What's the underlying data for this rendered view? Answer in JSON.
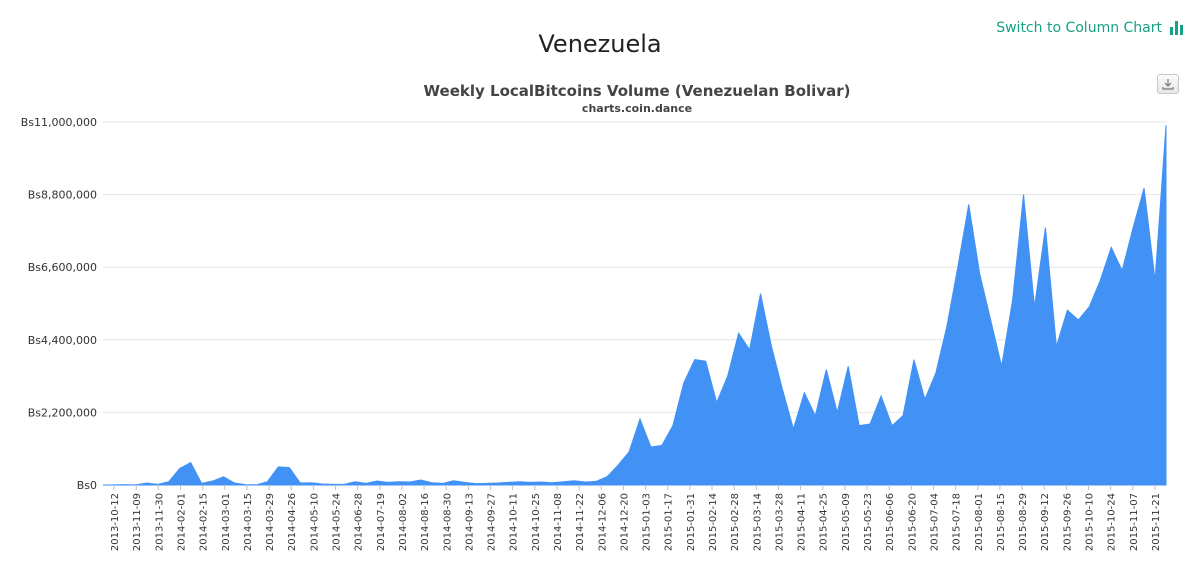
{
  "page": {
    "title": "Venezuela",
    "switch_label": "Switch to Column Chart",
    "switch_icon": "bar-chart-icon",
    "export_icon": "download-icon",
    "accent_color": "#16a085"
  },
  "chart_data": {
    "type": "area",
    "title": "Weekly LocalBitcoins Volume (Venezuelan Bolivar)",
    "subtitle": "charts.coin.dance",
    "xlabel": "",
    "ylabel": "",
    "currency_prefix": "Bs",
    "color": "#4292f5",
    "grid": true,
    "legend": "none",
    "ylim": [
      0,
      11000000
    ],
    "yticks": [
      0,
      2200000,
      4400000,
      6600000,
      8800000,
      11000000
    ],
    "ytick_labels": [
      "Bs0",
      "Bs2,200,000",
      "Bs4,400,000",
      "Bs6,600,000",
      "Bs8,800,000",
      "Bs11,000,000"
    ],
    "xtick_labels": [
      "2013-10-12",
      "2013-11-09",
      "2013-11-30",
      "2014-02-01",
      "2014-02-15",
      "2014-03-01",
      "2014-03-15",
      "2014-03-29",
      "2014-04-26",
      "2014-05-10",
      "2014-05-24",
      "2014-06-28",
      "2014-07-19",
      "2014-08-02",
      "2014-08-16",
      "2014-08-30",
      "2014-09-13",
      "2014-09-27",
      "2014-10-11",
      "2014-10-25",
      "2014-11-08",
      "2014-11-22",
      "2014-12-06",
      "2014-12-20",
      "2015-01-03",
      "2015-01-17",
      "2015-01-31",
      "2015-02-14",
      "2015-02-28",
      "2015-03-14",
      "2015-03-28",
      "2015-04-11",
      "2015-04-25",
      "2015-05-09",
      "2015-05-23",
      "2015-06-06",
      "2015-06-20",
      "2015-07-04",
      "2015-07-18",
      "2015-08-01",
      "2015-08-15",
      "2015-08-29",
      "2015-09-12",
      "2015-09-26",
      "2015-10-10",
      "2015-10-24",
      "2015-11-07",
      "2015-11-21"
    ],
    "values": [
      0,
      5000,
      10000,
      5000,
      60000,
      20000,
      100000,
      500000,
      680000,
      50000,
      120000,
      250000,
      60000,
      10000,
      5000,
      100000,
      550000,
      530000,
      60000,
      70000,
      30000,
      20000,
      20000,
      100000,
      50000,
      120000,
      80000,
      100000,
      90000,
      150000,
      70000,
      50000,
      130000,
      80000,
      40000,
      50000,
      60000,
      80000,
      100000,
      80000,
      90000,
      70000,
      100000,
      130000,
      90000,
      110000,
      250000,
      600000,
      1000000,
      2000000,
      1150000,
      1200000,
      1800000,
      3100000,
      3800000,
      3750000,
      2500000,
      3300000,
      4600000,
      4100000,
      5800000,
      4200000,
      2900000,
      1700000,
      2800000,
      2100000,
      3500000,
      2200000,
      3600000,
      1800000,
      1850000,
      2700000,
      1800000,
      2100000,
      3800000,
      2600000,
      3400000,
      4800000,
      6600000,
      8500000,
      6400000,
      5000000,
      3600000,
      5600000,
      8800000,
      5400000,
      7800000,
      4200000,
      5300000,
      5000000,
      5400000,
      6200000,
      7200000,
      6500000,
      7800000,
      9000000,
      6200000,
      10900000
    ]
  }
}
